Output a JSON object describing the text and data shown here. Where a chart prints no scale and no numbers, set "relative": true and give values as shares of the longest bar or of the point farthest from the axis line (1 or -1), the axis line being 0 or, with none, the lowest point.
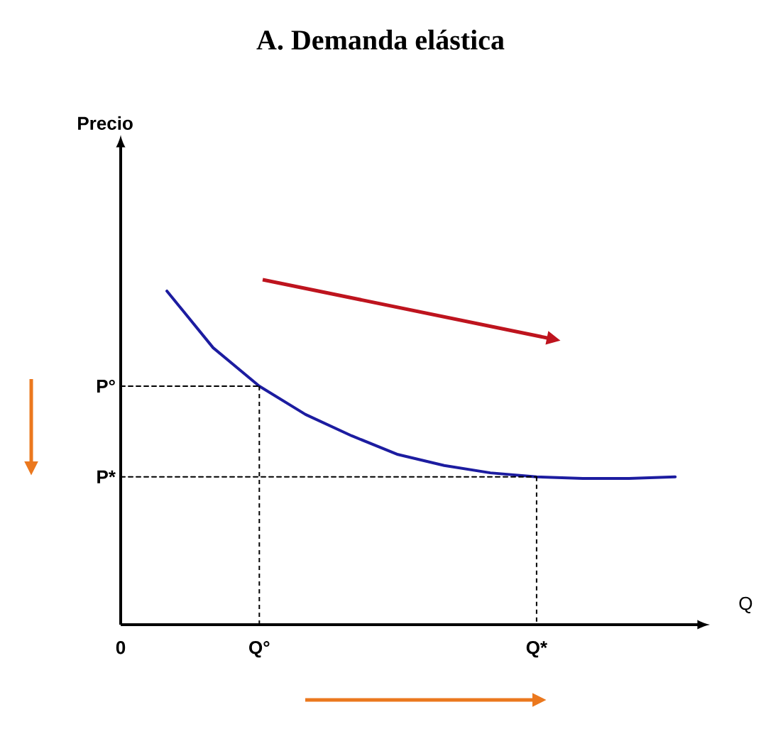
{
  "chart_data": {
    "type": "line",
    "title": "A.  Demanda elástica",
    "xlabel": "Q",
    "annotations": [
      "Precio"
    ],
    "relative": true,
    "categories": [
      "0",
      null,
      null,
      "Q°",
      null,
      null,
      null,
      null,
      null,
      "Q*",
      null,
      null,
      null
    ],
    "grid": false,
    "marker": "none",
    "series": [
      {
        "color": "#1c1ca0",
        "line_style": "solid",
        "values": [
          null,
          1,
          0.83,
          0.715,
          0.63,
          0.566,
          0.51,
          0.477,
          0.455,
          0.443,
          0.438,
          0.438,
          0.443
        ]
      },
      {
        "name": "P°",
        "color": "#000000",
        "line_style": "dashed",
        "values": [
          0.715,
          0.715,
          0.715,
          0.715,
          null,
          null,
          null,
          null,
          null,
          null,
          null,
          null,
          null
        ]
      },
      {
        "name": "P*",
        "color": "#000000",
        "line_style": "dashed",
        "values": [
          0.443,
          0.443,
          0.443,
          0.443,
          0.443,
          0.443,
          0.443,
          0.443,
          0.443,
          0.443,
          null,
          null,
          null
        ]
      }
    ]
  }
}
